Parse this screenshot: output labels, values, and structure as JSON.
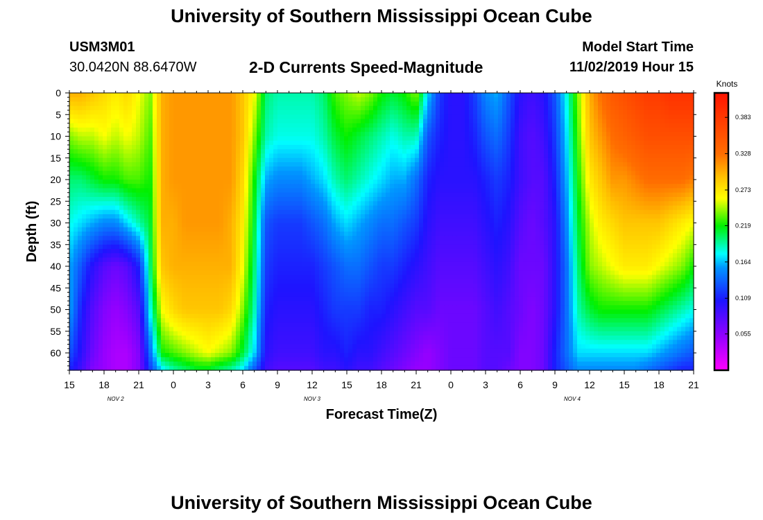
{
  "header": {
    "title": "University of Southern Mississippi Ocean Cube",
    "station_id": "USM3M01",
    "coords": "30.0420N 88.6470W",
    "product": "2-D Currents Speed-Magnitude",
    "start_label": "Model Start Time",
    "start_value": "11/02/2019 Hour 15"
  },
  "footer": {
    "title": "University of Southern Mississippi Ocean Cube"
  },
  "chart_data": {
    "type": "heatmap",
    "title": "2-D Currents Speed-Magnitude",
    "xlabel": "Forecast Time(Z)",
    "ylabel": "Depth (ft)",
    "x_hours": [
      0,
      3,
      6,
      9,
      12,
      15,
      18,
      21,
      24,
      27,
      30,
      33,
      36,
      39,
      42,
      45,
      48,
      51,
      54
    ],
    "x_tick_labels": [
      "15",
      "18",
      "21",
      "0",
      "3",
      "6",
      "9",
      "12",
      "15",
      "18",
      "21",
      "0",
      "3",
      "6",
      "9",
      "12",
      "15",
      "18",
      "21"
    ],
    "date_labels": [
      {
        "hour": 4,
        "label": "NOV 2"
      },
      {
        "hour": 21,
        "label": "NOV 3"
      },
      {
        "hour": 43.5,
        "label": "NOV 4"
      }
    ],
    "ylim": [
      0,
      64
    ],
    "y_ticks": [
      0,
      5,
      10,
      15,
      20,
      25,
      30,
      35,
      40,
      45,
      50,
      55,
      60
    ],
    "depths": [
      0,
      10,
      20,
      30,
      40,
      50,
      60,
      64
    ],
    "times": [
      0,
      1,
      2,
      3,
      4,
      5,
      6,
      7,
      8,
      9,
      10,
      11,
      12,
      13,
      14,
      15,
      16,
      17,
      18,
      19,
      20,
      21,
      22,
      23,
      24,
      25,
      26,
      27,
      28,
      29,
      30,
      31,
      32,
      33,
      34,
      35,
      36,
      37,
      38,
      39,
      40,
      41,
      42,
      43,
      44,
      45,
      46,
      47,
      48,
      49,
      50,
      51,
      52,
      53,
      54
    ],
    "values": [
      [
        0.3,
        0.3,
        0.29,
        0.28,
        0.27,
        0.28,
        0.26,
        0.24,
        0.3,
        0.31,
        0.31,
        0.31,
        0.31,
        0.31,
        0.31,
        0.29,
        0.26,
        0.2,
        0.19,
        0.19,
        0.19,
        0.19,
        0.2,
        0.23,
        0.24,
        0.25,
        0.24,
        0.22,
        0.21,
        0.22,
        0.24,
        0.17,
        0.12,
        0.1,
        0.1,
        0.12,
        0.15,
        0.16,
        0.13,
        0.1,
        0.09,
        0.1,
        0.13,
        0.18,
        0.24,
        0.3,
        0.33,
        0.35,
        0.36,
        0.37,
        0.38,
        0.38,
        0.39,
        0.39,
        0.39
      ],
      [
        0.24,
        0.25,
        0.25,
        0.26,
        0.25,
        0.26,
        0.25,
        0.23,
        0.3,
        0.31,
        0.31,
        0.31,
        0.31,
        0.31,
        0.31,
        0.29,
        0.24,
        0.19,
        0.18,
        0.18,
        0.18,
        0.18,
        0.19,
        0.21,
        0.22,
        0.21,
        0.2,
        0.19,
        0.18,
        0.19,
        0.19,
        0.13,
        0.11,
        0.1,
        0.1,
        0.11,
        0.13,
        0.14,
        0.12,
        0.09,
        0.08,
        0.09,
        0.12,
        0.17,
        0.23,
        0.29,
        0.31,
        0.33,
        0.34,
        0.35,
        0.36,
        0.36,
        0.36,
        0.36,
        0.36
      ],
      [
        0.2,
        0.2,
        0.21,
        0.22,
        0.22,
        0.23,
        0.23,
        0.22,
        0.3,
        0.31,
        0.31,
        0.31,
        0.31,
        0.31,
        0.31,
        0.28,
        0.22,
        0.16,
        0.15,
        0.15,
        0.15,
        0.16,
        0.17,
        0.19,
        0.2,
        0.19,
        0.18,
        0.17,
        0.16,
        0.16,
        0.14,
        0.11,
        0.1,
        0.1,
        0.1,
        0.1,
        0.11,
        0.12,
        0.11,
        0.09,
        0.08,
        0.08,
        0.11,
        0.16,
        0.22,
        0.27,
        0.29,
        0.31,
        0.31,
        0.32,
        0.33,
        0.33,
        0.33,
        0.33,
        0.32
      ],
      [
        0.18,
        0.17,
        0.16,
        0.15,
        0.15,
        0.17,
        0.19,
        0.21,
        0.3,
        0.3,
        0.31,
        0.31,
        0.31,
        0.31,
        0.3,
        0.27,
        0.21,
        0.13,
        0.12,
        0.12,
        0.12,
        0.13,
        0.14,
        0.16,
        0.17,
        0.16,
        0.15,
        0.14,
        0.14,
        0.13,
        0.12,
        0.1,
        0.09,
        0.09,
        0.09,
        0.09,
        0.1,
        0.11,
        0.1,
        0.08,
        0.07,
        0.08,
        0.1,
        0.15,
        0.21,
        0.25,
        0.27,
        0.28,
        0.29,
        0.29,
        0.29,
        0.29,
        0.28,
        0.27,
        0.26
      ],
      [
        0.16,
        0.13,
        0.1,
        0.08,
        0.07,
        0.08,
        0.11,
        0.2,
        0.29,
        0.3,
        0.3,
        0.3,
        0.3,
        0.3,
        0.3,
        0.26,
        0.2,
        0.12,
        0.11,
        0.11,
        0.11,
        0.11,
        0.12,
        0.13,
        0.14,
        0.14,
        0.13,
        0.12,
        0.12,
        0.11,
        0.1,
        0.09,
        0.08,
        0.08,
        0.08,
        0.08,
        0.09,
        0.1,
        0.09,
        0.07,
        0.07,
        0.07,
        0.1,
        0.14,
        0.2,
        0.24,
        0.25,
        0.26,
        0.27,
        0.27,
        0.27,
        0.26,
        0.25,
        0.24,
        0.22
      ],
      [
        0.16,
        0.11,
        0.08,
        0.06,
        0.05,
        0.06,
        0.08,
        0.18,
        0.26,
        0.28,
        0.29,
        0.29,
        0.29,
        0.29,
        0.28,
        0.24,
        0.19,
        0.11,
        0.1,
        0.1,
        0.1,
        0.1,
        0.11,
        0.12,
        0.12,
        0.12,
        0.11,
        0.11,
        0.1,
        0.09,
        0.08,
        0.08,
        0.07,
        0.07,
        0.07,
        0.07,
        0.08,
        0.09,
        0.08,
        0.07,
        0.06,
        0.07,
        0.1,
        0.14,
        0.19,
        0.21,
        0.22,
        0.22,
        0.22,
        0.22,
        0.22,
        0.21,
        0.2,
        0.19,
        0.18
      ],
      [
        0.13,
        0.1,
        0.07,
        0.05,
        0.04,
        0.04,
        0.06,
        0.14,
        0.22,
        0.23,
        0.24,
        0.25,
        0.26,
        0.25,
        0.24,
        0.21,
        0.17,
        0.1,
        0.09,
        0.09,
        0.09,
        0.09,
        0.1,
        0.1,
        0.11,
        0.1,
        0.1,
        0.09,
        0.08,
        0.07,
        0.06,
        0.05,
        0.06,
        0.07,
        0.07,
        0.07,
        0.08,
        0.08,
        0.08,
        0.06,
        0.06,
        0.07,
        0.11,
        0.14,
        0.17,
        0.17,
        0.17,
        0.17,
        0.17,
        0.17,
        0.17,
        0.16,
        0.15,
        0.14,
        0.13
      ],
      [
        0.11,
        0.09,
        0.06,
        0.05,
        0.04,
        0.04,
        0.06,
        0.12,
        0.17,
        0.19,
        0.2,
        0.21,
        0.21,
        0.2,
        0.19,
        0.17,
        0.13,
        0.09,
        0.08,
        0.08,
        0.08,
        0.08,
        0.09,
        0.09,
        0.1,
        0.09,
        0.09,
        0.08,
        0.07,
        0.06,
        0.05,
        0.05,
        0.06,
        0.07,
        0.07,
        0.07,
        0.08,
        0.08,
        0.07,
        0.06,
        0.06,
        0.07,
        0.11,
        0.13,
        0.15,
        0.15,
        0.15,
        0.15,
        0.15,
        0.15,
        0.14,
        0.13,
        0.12,
        0.11,
        0.11
      ]
    ],
    "colorbar": {
      "label": "Knots",
      "min": 0.0,
      "max": 0.42,
      "tick_values": [
        0.055,
        0.109,
        0.164,
        0.219,
        0.273,
        0.328,
        0.383
      ],
      "tick_labels": [
        "0.055",
        "0.109",
        "0.164",
        "0.219",
        "0.273",
        "0.328",
        "0.383"
      ]
    }
  }
}
